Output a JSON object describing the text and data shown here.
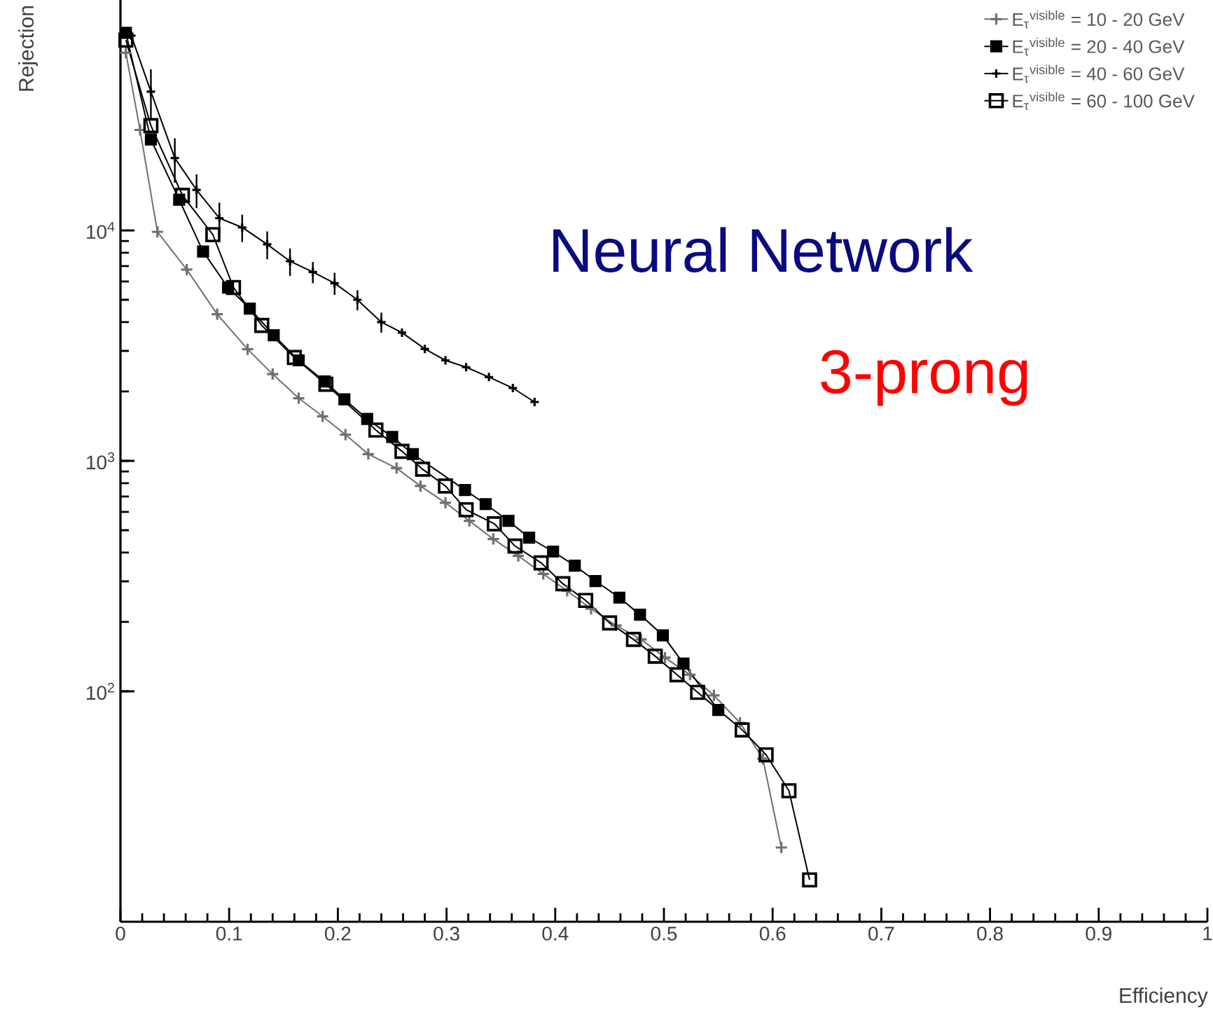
{
  "chart_data": {
    "type": "line",
    "xlabel": "Efficiency",
    "ylabel": "Rejection",
    "annotations": [
      "Neural Network",
      "3-prong"
    ],
    "xlim": [
      0,
      1
    ],
    "ylim": [
      10,
      100000
    ],
    "log": "y",
    "xticks": [
      0,
      0.1,
      0.2,
      0.3,
      0.4,
      0.5,
      0.6,
      0.7,
      0.8,
      0.9,
      1
    ],
    "yticks": [
      {
        "value": 100,
        "label": "10$^{2}$"
      },
      {
        "value": 1000,
        "label": "10$^{3}$"
      },
      {
        "value": 10000,
        "label": "10$^{4}$"
      }
    ],
    "legend": "top right",
    "series": [
      {
        "name": "E$_{τ}$$^{visible}$ = 10 - 20 GeV",
        "color": "#707070",
        "marker": "cross",
        "x": [
          0.005,
          0.018,
          0.034,
          0.061,
          0.089,
          0.117,
          0.14,
          0.164,
          0.186,
          0.207,
          0.228,
          0.254,
          0.276,
          0.299,
          0.321,
          0.343,
          0.366,
          0.389,
          0.411,
          0.433,
          0.456,
          0.479,
          0.501,
          0.524,
          0.546,
          0.57,
          0.591,
          0.608
        ],
        "values": [
          59000,
          27300,
          9860,
          6760,
          4330,
          3050,
          2380,
          1870,
          1560,
          1300,
          1070,
          930,
          778,
          658,
          549,
          458,
          387,
          323,
          273,
          228,
          193,
          168,
          140,
          118,
          96,
          73,
          51,
          21
        ]
      },
      {
        "name": "E$_{τ}$$^{visible}$ = 20 - 40 GeV",
        "color": "#000000",
        "marker": "square",
        "x": [
          0.005,
          0.028,
          0.054,
          0.076,
          0.099,
          0.119,
          0.141,
          0.164,
          0.188,
          0.206,
          0.227,
          0.25,
          0.269,
          0.317,
          0.336,
          0.357,
          0.376,
          0.398,
          0.418,
          0.437,
          0.459,
          0.478,
          0.499,
          0.518,
          0.55
        ],
        "values": [
          72000,
          24800,
          13600,
          8100,
          5650,
          4580,
          3510,
          2730,
          2210,
          1850,
          1520,
          1270,
          1070,
          747,
          649,
          549,
          464,
          404,
          351,
          301,
          255,
          215,
          175,
          132,
          83
        ]
      },
      {
        "name": "E$_{τ}$$^{visible}$ = 40 - 60 GeV",
        "color": "#000000",
        "marker": "cross",
        "x": [
          0.01,
          0.028,
          0.05,
          0.07,
          0.091,
          0.112,
          0.135,
          0.156,
          0.177,
          0.197,
          0.218,
          0.24,
          0.259,
          0.28,
          0.299,
          0.318,
          0.339,
          0.361,
          0.381
        ],
        "values": [
          70000,
          40000,
          20600,
          15000,
          11300,
          10300,
          8700,
          7350,
          6600,
          5900,
          5000,
          4000,
          3600,
          3060,
          2730,
          2550,
          2310,
          2070,
          1800
        ],
        "errors": [
          null,
          10000,
          4500,
          2500,
          1900,
          1400,
          1200,
          1000,
          700,
          650,
          500,
          400,
          null,
          null,
          null,
          null,
          null,
          null,
          null
        ]
      },
      {
        "name": "E$_{τ}$$^{visible}$ = 60 - 100 GeV",
        "color": "#000000",
        "marker": "square",
        "x": [
          0.005,
          0.028,
          0.057,
          0.085,
          0.104,
          0.13,
          0.16,
          0.189,
          0.235,
          0.259,
          0.278,
          0.299,
          0.318,
          0.344,
          0.363,
          0.387,
          0.407,
          0.428,
          0.45,
          0.472,
          0.492,
          0.512,
          0.531,
          0.572,
          0.594,
          0.615,
          0.634
        ],
        "values": [
          67000,
          28500,
          14200,
          9590,
          5650,
          3870,
          2810,
          2150,
          1360,
          1100,
          920,
          778,
          614,
          533,
          427,
          361,
          293,
          248,
          198,
          168,
          142,
          118,
          99,
          68,
          53,
          37,
          15.2
        ]
      }
    ]
  }
}
